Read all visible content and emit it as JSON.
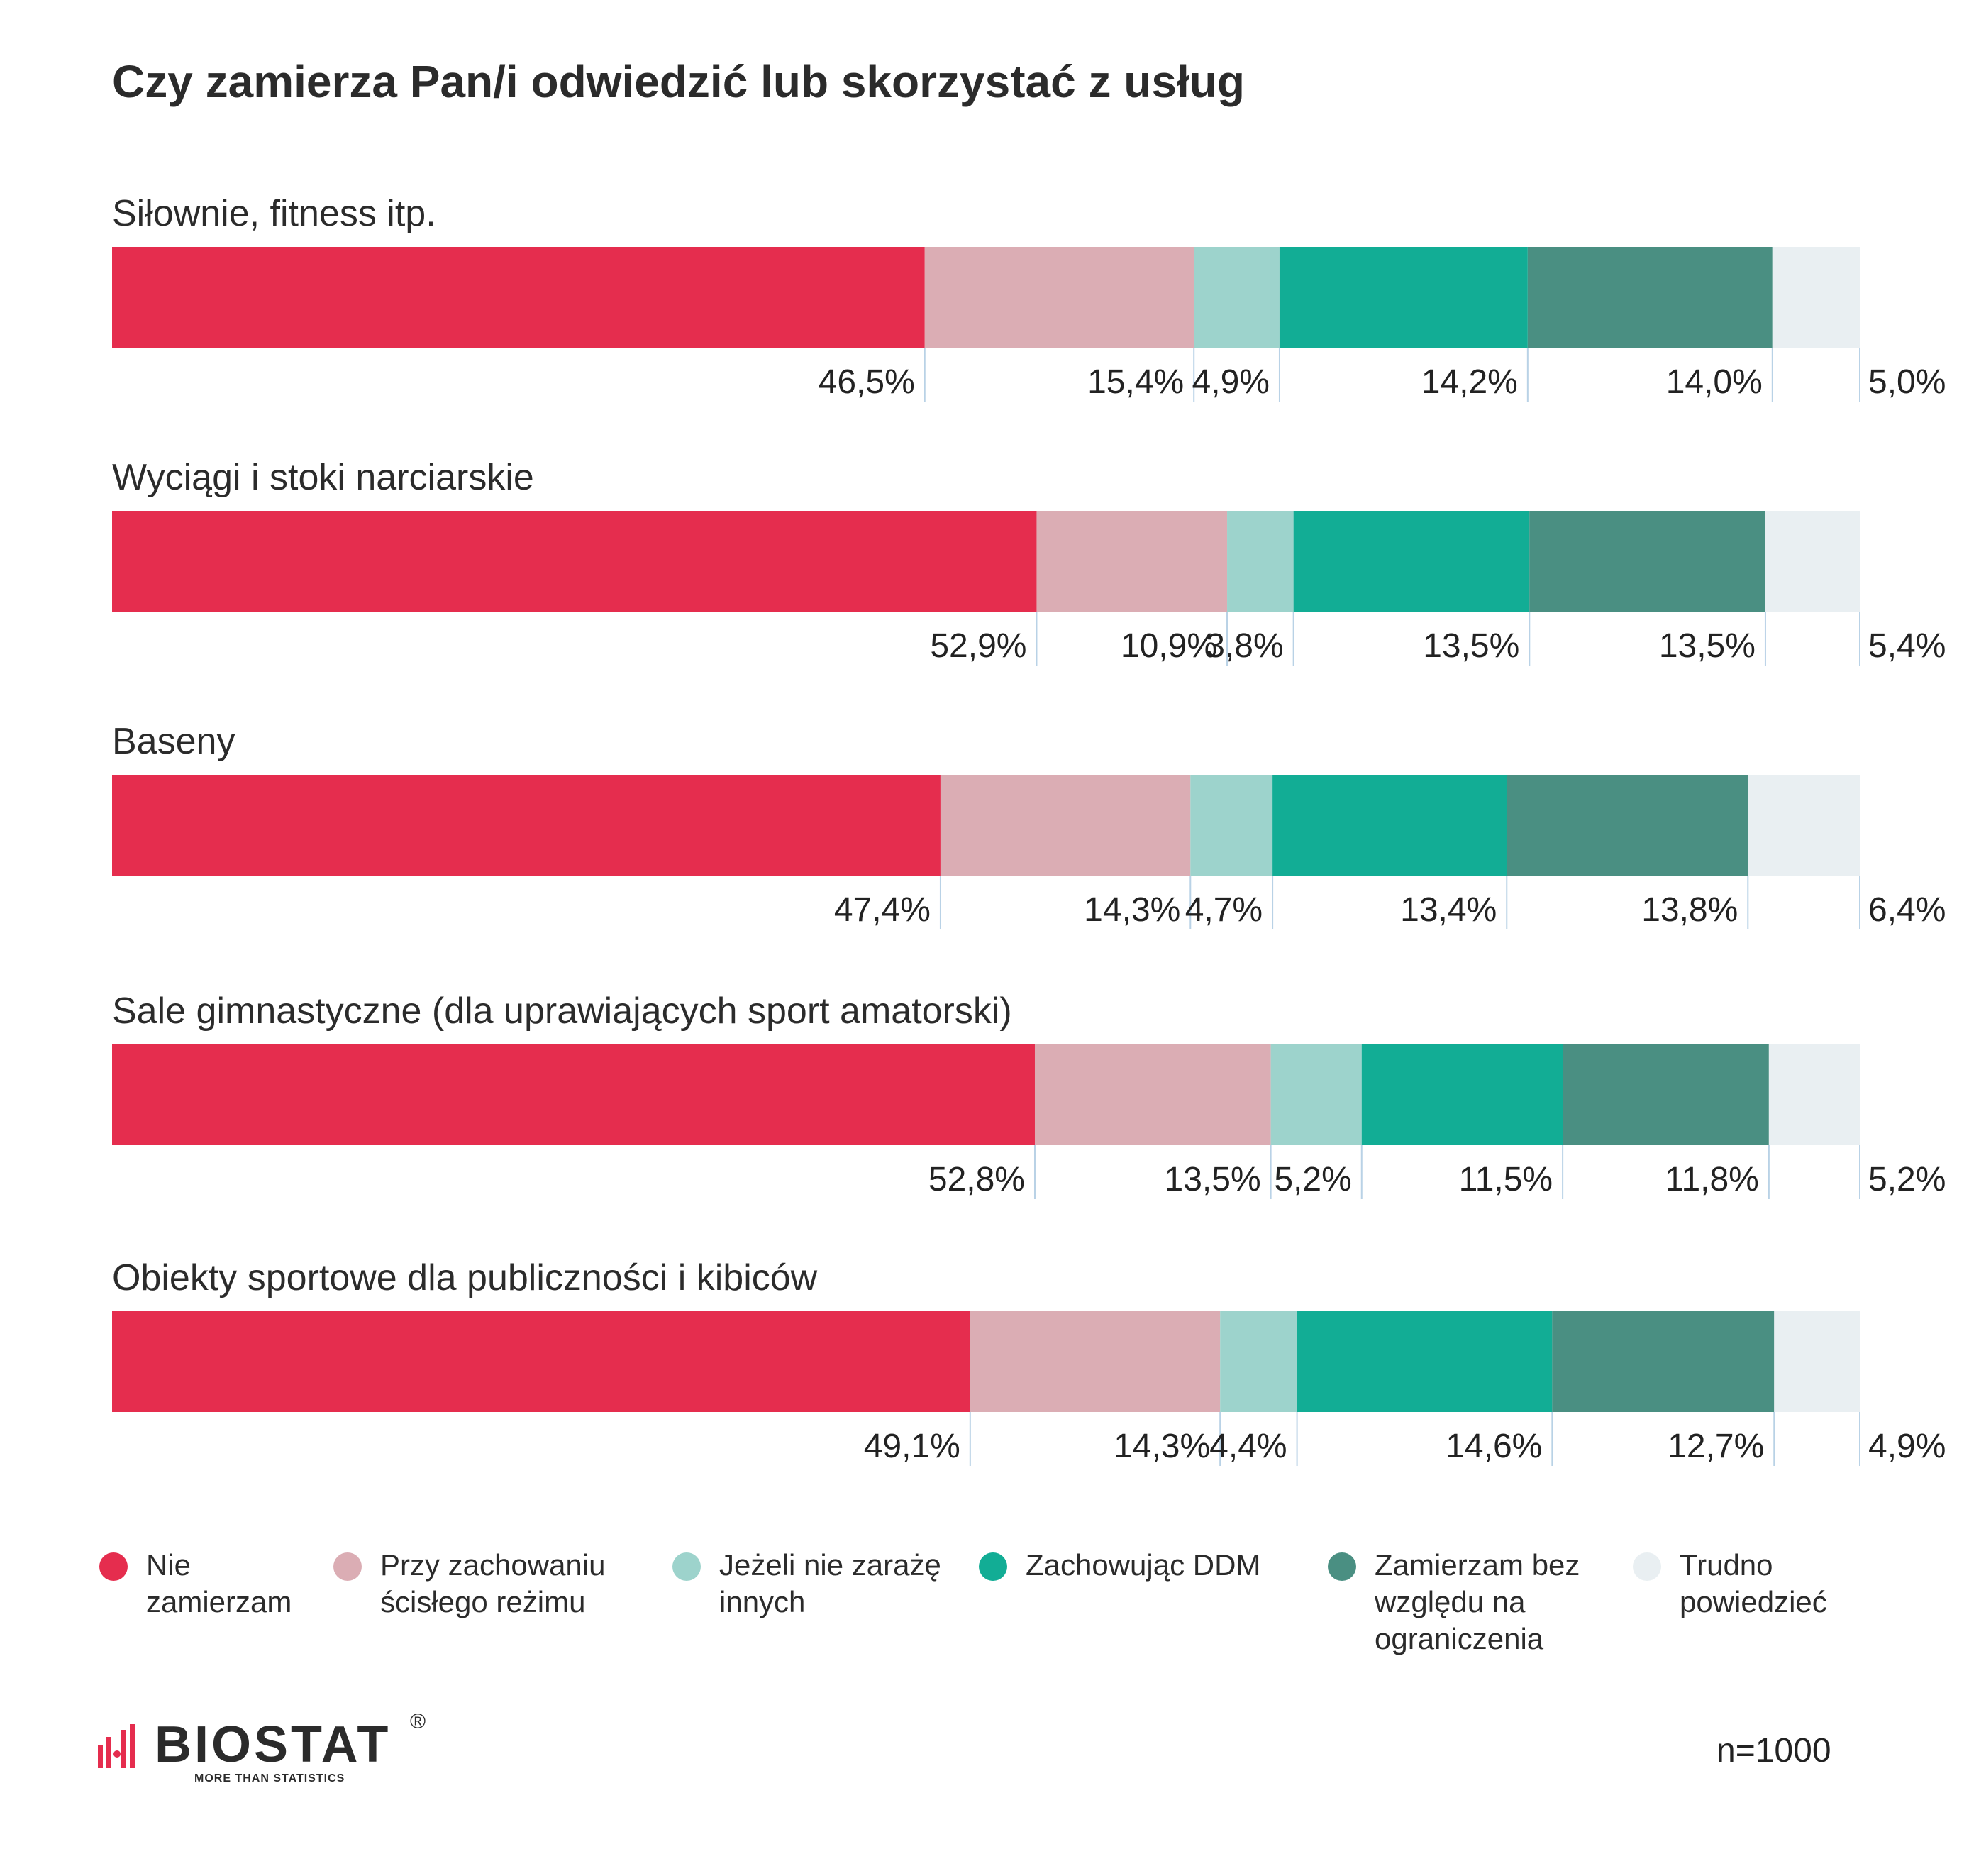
{
  "title": "Czy zamierza Pan/i odwiedzić lub skorzystać z usług",
  "chart_data": {
    "type": "bar",
    "orientation": "horizontal",
    "stacked": true,
    "unit": "%",
    "categories": [
      "Siłownie, fitness itp.",
      "Wyciągi i stoki narciarskie",
      "Baseny",
      "Sale gimnastyczne (dla uprawiających sport amatorski)",
      "Obiekty sportowe dla publiczności i kibiców"
    ],
    "series": [
      {
        "name": "Nie zamierzam",
        "color": "#e52d4e",
        "values": [
          46.5,
          52.9,
          47.4,
          52.8,
          49.1
        ]
      },
      {
        "name": "Przy zachowaniu ścisłego reżimu",
        "color": "#dbadb4",
        "values": [
          15.4,
          10.9,
          14.3,
          13.5,
          14.3
        ]
      },
      {
        "name": "Jeżeli nie zarażę innych",
        "color": "#9dd3cc",
        "values": [
          4.9,
          3.8,
          4.7,
          5.2,
          4.4
        ]
      },
      {
        "name": "Zachowując DDM",
        "color": "#12ad95",
        "values": [
          14.2,
          13.5,
          13.4,
          11.5,
          14.6
        ]
      },
      {
        "name": "Zamierzam bez względu na ograniczenia",
        "color": "#4a8f82",
        "values": [
          14.0,
          13.5,
          13.8,
          11.8,
          12.7
        ]
      },
      {
        "name": "Trudno powiedzieć",
        "color": "#e9eff2",
        "values": [
          5.0,
          5.4,
          6.4,
          5.2,
          4.9
        ]
      }
    ],
    "value_labels": [
      [
        "46,5%",
        "15,4%",
        "4,9%",
        "14,2%",
        "14,0%",
        "5,0%"
      ],
      [
        "52,9%",
        "10,9%",
        "3,8%",
        "13,5%",
        "13,5%",
        "5,4%"
      ],
      [
        "47,4%",
        "14,3%",
        "4,7%",
        "13,4%",
        "13,8%",
        "6,4%"
      ],
      [
        "52,8%",
        "13,5%",
        "5,2%",
        "11,5%",
        "11,8%",
        "5,2%"
      ],
      [
        "49,1%",
        "14,3%",
        "4,4%",
        "14,6%",
        "12,7%",
        "4,9%"
      ]
    ],
    "legend_position": "bottom",
    "grid": false
  },
  "legend": [
    {
      "label": "Nie zamierzam",
      "color": "#e52d4e"
    },
    {
      "label": "Przy zachowaniu ścisłego reżimu",
      "color": "#dbadb4"
    },
    {
      "label": "Jeżeli nie zarażę innych",
      "color": "#9dd3cc"
    },
    {
      "label": "Zachowując DDM",
      "color": "#12ad95"
    },
    {
      "label": "Zamierzam bez względu na ograniczenia",
      "color": "#4a8f82"
    },
    {
      "label": "Trudno powiedzieć",
      "color": "#e9eff2"
    }
  ],
  "footer": {
    "logo_text": "BIOSTAT",
    "logo_registered": "®",
    "logo_tagline": "MORE THAN STATISTICS",
    "sample_size": "n=1000"
  }
}
